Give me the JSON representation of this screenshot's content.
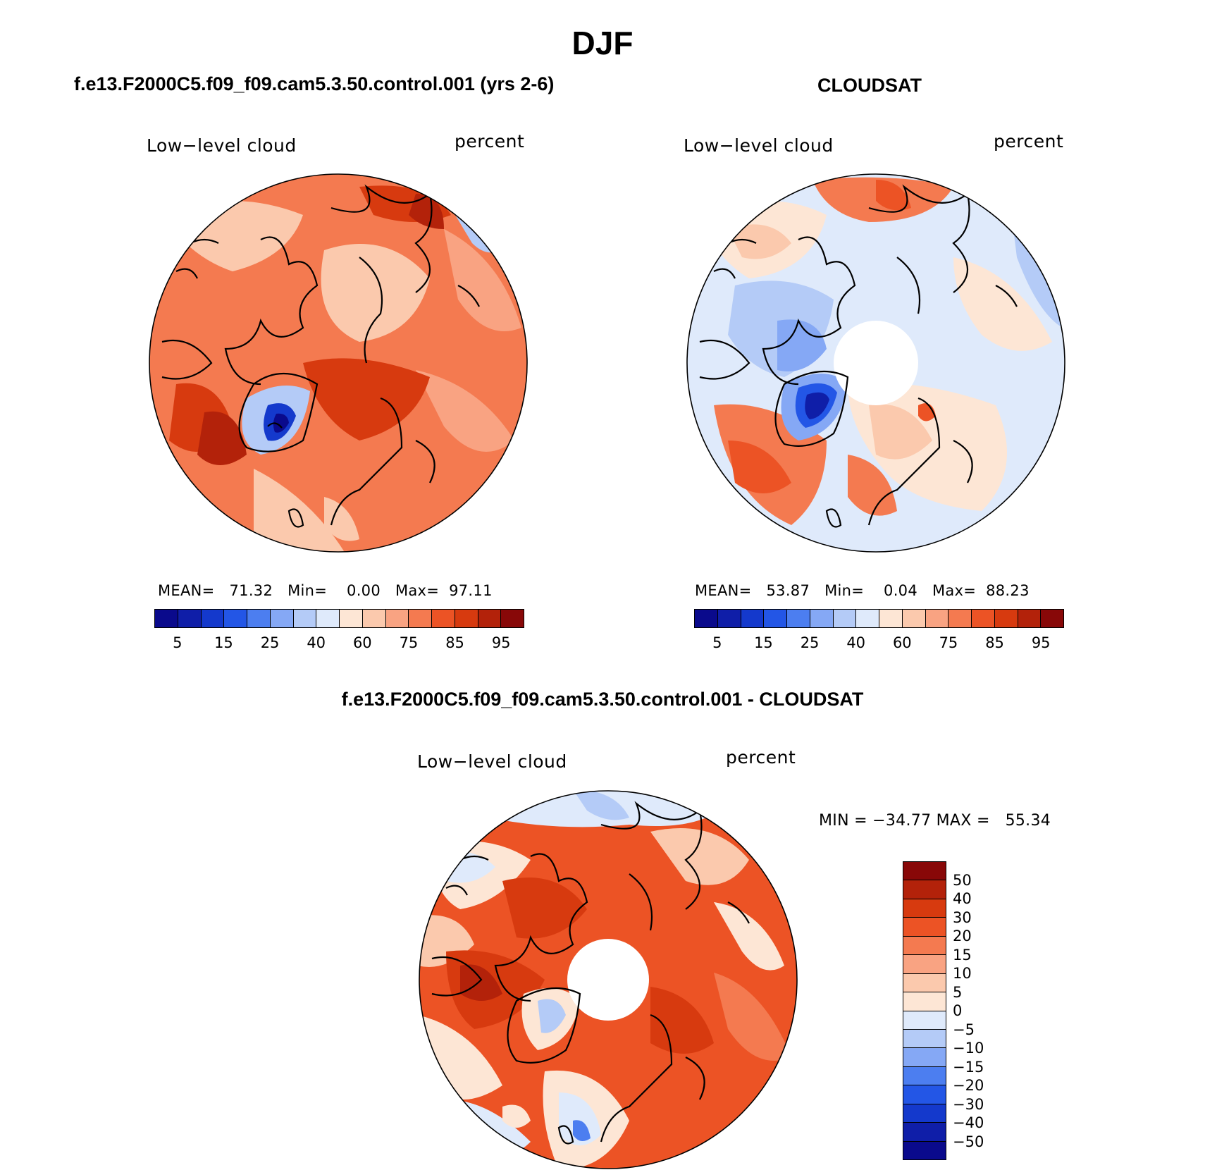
{
  "title": "DJF",
  "panels": [
    {
      "id": "model",
      "title": "f.e13.F2000C5.f09_f09.cam5.3.50.control.001 (yrs 2-6)",
      "variable": "Low−level cloud",
      "units": "percent",
      "stats": {
        "mean_label": "MEAN=",
        "mean": "71.32",
        "min_label": "Min=",
        "min": "0.00",
        "max_label": "Max=",
        "max": "97.11"
      },
      "has_polar_hole": false
    },
    {
      "id": "obs",
      "title": "CLOUDSAT",
      "variable": "Low−level cloud",
      "units": "percent",
      "stats": {
        "mean_label": "MEAN=",
        "mean": "53.87",
        "min_label": "Min=",
        "min": "0.04",
        "max_label": "Max=",
        "max": "88.23"
      },
      "has_polar_hole": true
    },
    {
      "id": "diff",
      "title": "f.e13.F2000C5.f09_f09.cam5.3.50.control.001 - CLOUDSAT",
      "variable": "Low−level cloud",
      "units": "percent",
      "minmax": "MIN = −34.77 MAX =   55.34",
      "has_polar_hole": true
    }
  ],
  "abs_colorbar": {
    "colors": [
      "#0a0a8c",
      "#0f1ea8",
      "#1439cc",
      "#2356e6",
      "#4c7ef0",
      "#85a8f5",
      "#b4cbf7",
      "#dfeafb",
      "#fde6d5",
      "#fbc9ad",
      "#f9a382",
      "#f47a50",
      "#ec5325",
      "#d73a0f",
      "#b3220a",
      "#880808"
    ],
    "ticks": [
      "5",
      "15",
      "25",
      "40",
      "60",
      "75",
      "85",
      "95"
    ]
  },
  "diff_colorbar": {
    "colors": [
      "#880808",
      "#b3220a",
      "#d73a0f",
      "#ec5325",
      "#f47a50",
      "#f9a382",
      "#fbc9ad",
      "#fde6d5",
      "#dfeafb",
      "#b4cbf7",
      "#85a8f5",
      "#4c7ef0",
      "#2356e6",
      "#1439cc",
      "#0f1ea8",
      "#0a0a8c"
    ],
    "ticks": [
      "50",
      "40",
      "30",
      "20",
      "15",
      "10",
      "5",
      "0",
      "−5",
      "−10",
      "−15",
      "−20",
      "−30",
      "−40",
      "−50"
    ]
  },
  "map_colors": {
    "model": {
      "base": "#f47a50",
      "pale": "#fbc9ad",
      "light": "#f9a382",
      "dark": "#d73a0f",
      "darker": "#b3220a",
      "blue": "#b4cbf7",
      "deepblue": "#1439cc",
      "navy": "#0a0a8c"
    },
    "obs": {
      "base": "#dfeafb",
      "pale": "#fde6d5",
      "light": "#fbc9ad",
      "orange": "#f47a50",
      "red": "#ec5325",
      "blue": "#b4cbf7",
      "midblue": "#85a8f5",
      "deepblue": "#2356e6",
      "navy": "#0f1ea8"
    },
    "diff": {
      "base": "#ec5325",
      "pale": "#fde6d5",
      "light": "#fbc9ad",
      "mid": "#f47a50",
      "dark": "#d73a0f",
      "darker": "#b3220a",
      "blue": "#b4cbf7",
      "paleblue": "#dfeafb",
      "deepblue": "#4c7ef0"
    }
  }
}
